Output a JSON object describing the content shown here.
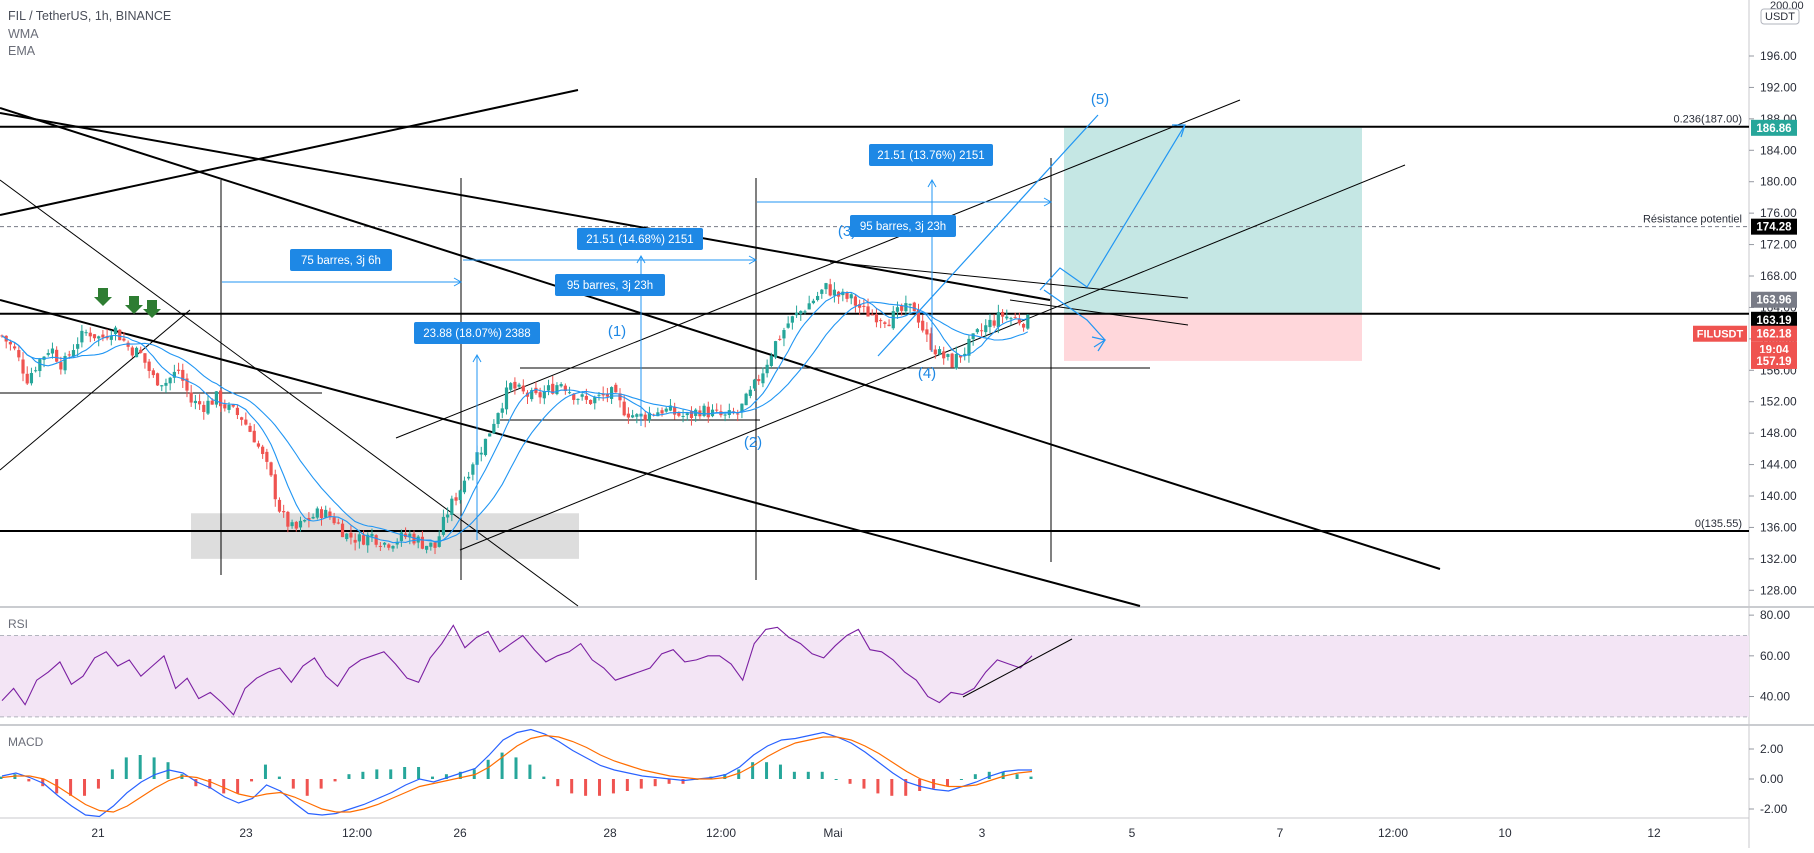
{
  "header": {
    "title": "FIL / TetherUS, 1h, BINANCE",
    "indicator_1": "WMA",
    "indicator_2": "EMA"
  },
  "panes": {
    "rsi_label": "RSI",
    "macd_label": "MACD"
  },
  "colors": {
    "candle_up": "#26a69a",
    "candle_down": "#ef5350",
    "ma": "#2196f3",
    "rsi_line": "#7b1fa2",
    "macd_line": "#2962ff",
    "signal_line": "#ff6d00",
    "target_zone": "#b2dfdb",
    "stop_zone": "#ffcdd2",
    "annotation_fill": "#1e88e5",
    "wave_label": "#1e88e5",
    "arrow": "#2e7d32"
  },
  "chart_data": [
    {
      "type": "candlestick",
      "title": "FIL / TetherUS, 1h, BINANCE",
      "ylim": [
        126,
        203
      ],
      "y_ticks": [
        128,
        132,
        136,
        140,
        144,
        148,
        152,
        156,
        160,
        164,
        168,
        172,
        176,
        180,
        184,
        188,
        192,
        196
      ],
      "y_tick_labels": [
        "128.00",
        "132.00",
        "136.00",
        "140.00",
        "144.00",
        "148.00",
        "152.00",
        "156.00",
        "160.00",
        "164.00",
        "168.00",
        "172.00",
        "176.00",
        "180.00",
        "184.00",
        "188.00",
        "192.00",
        "196.00"
      ],
      "x_ticks": [
        "21",
        "23",
        "12:00",
        "26",
        "28",
        "12:00",
        "Mai",
        "3",
        "5",
        "7",
        "12:00",
        "10",
        "12"
      ],
      "price_path": [
        [
          0,
          160.4
        ],
        [
          6,
          158.5
        ],
        [
          12,
          155
        ],
        [
          17,
          157
        ],
        [
          23,
          159
        ],
        [
          29,
          156.5
        ],
        [
          35,
          159.5
        ],
        [
          41,
          161
        ],
        [
          47,
          160
        ],
        [
          53,
          161.5
        ],
        [
          60,
          159
        ],
        [
          66,
          158
        ],
        [
          72,
          155
        ],
        [
          78,
          154.5
        ],
        [
          84,
          156
        ],
        [
          90,
          152
        ],
        [
          96,
          151.5
        ],
        [
          102,
          152.5
        ],
        [
          108,
          151
        ],
        [
          114,
          150
        ],
        [
          120,
          147.5
        ],
        [
          127,
          143
        ],
        [
          133,
          137.5
        ],
        [
          139,
          135.5
        ],
        [
          145,
          137
        ],
        [
          152,
          138
        ],
        [
          158,
          137
        ],
        [
          164,
          135
        ],
        [
          170,
          134.5
        ],
        [
          176,
          135
        ],
        [
          182,
          134
        ],
        [
          188,
          134.5
        ],
        [
          194,
          135
        ],
        [
          200,
          134
        ],
        [
          206,
          133.5
        ],
        [
          212,
          138
        ],
        [
          218,
          141
        ],
        [
          224,
          144.5
        ],
        [
          230,
          147
        ],
        [
          236,
          151
        ],
        [
          242,
          154
        ],
        [
          248,
          153
        ],
        [
          254,
          152.5
        ],
        [
          260,
          153.5
        ],
        [
          266,
          154.5
        ],
        [
          272,
          153
        ],
        [
          278,
          152
        ],
        [
          284,
          152.5
        ],
        [
          290,
          153
        ],
        [
          296,
          151
        ],
        [
          302,
          150
        ],
        [
          308,
          150.5
        ],
        [
          314,
          151
        ],
        [
          320,
          150.5
        ],
        [
          326,
          150
        ],
        [
          332,
          151
        ],
        [
          338,
          150.5
        ],
        [
          344,
          150
        ],
        [
          350,
          150.5
        ],
        [
          356,
          153
        ],
        [
          362,
          156
        ],
        [
          368,
          159.5
        ],
        [
          374,
          162
        ],
        [
          380,
          163.5
        ],
        [
          386,
          165
        ],
        [
          392,
          166.5
        ],
        [
          398,
          165.5
        ],
        [
          404,
          165
        ],
        [
          410,
          163.5
        ],
        [
          416,
          163
        ],
        [
          422,
          162.5
        ],
        [
          428,
          163.5
        ],
        [
          434,
          164
        ],
        [
          440,
          160
        ],
        [
          446,
          158
        ],
        [
          452,
          157
        ],
        [
          458,
          158.5
        ],
        [
          464,
          160.5
        ],
        [
          470,
          162
        ],
        [
          476,
          163
        ],
        [
          482,
          162.5
        ],
        [
          488,
          162.2
        ]
      ],
      "series": [
        {
          "name": "WMA",
          "values": "smoothed close"
        },
        {
          "name": "EMA",
          "values": "smoothed close"
        }
      ],
      "price_labels": [
        {
          "text": "186.86",
          "value": 186.86,
          "color": "#26a69a"
        },
        {
          "text": "174.28",
          "value": 174.28,
          "color": "#000000"
        },
        {
          "text": "163.96",
          "value": 163.96,
          "color": "#787b86"
        },
        {
          "text": "163.19",
          "value": 163.19,
          "color": "#000000"
        },
        {
          "text": "FILUSDT",
          "value": 162.18,
          "color": "#ef5350"
        },
        {
          "text": "162.18",
          "value": 162.18,
          "color": "#ef5350"
        },
        {
          "text": "19:04",
          "value": 162.18,
          "color": "#ef5350"
        },
        {
          "text": "157.19",
          "value": 157.19,
          "color": "#ef5350"
        }
      ],
      "top_axis_labels": [
        "200.00",
        "USDT"
      ],
      "horizontal_levels": [
        {
          "value": 187.0,
          "label": "0.236(187.00)"
        },
        {
          "value": 174.28,
          "label": "Résistance potentiel",
          "style": "dashed"
        },
        {
          "value": 163.19
        },
        {
          "value": 135.55,
          "label": "0(135.55)"
        }
      ],
      "annotations": [
        {
          "text": "75 barres, 3j 6h"
        },
        {
          "text": "23.88 (18.07%) 2388"
        },
        {
          "text": "21.51 (14.68%) 2151"
        },
        {
          "text": "95 barres, 3j 23h"
        },
        {
          "text": "21.51 (13.76%) 2151"
        },
        {
          "text": "95 barres, 3j 23h"
        }
      ],
      "wave_labels": [
        "(1)",
        "(2)",
        "(3)",
        "(4)",
        "(5)"
      ],
      "position_tool": {
        "entry": 163.19,
        "target": 186.86,
        "stop": 157.19
      }
    },
    {
      "type": "line",
      "title": "RSI",
      "ylim": [
        26,
        84
      ],
      "y_ticks": [
        40,
        60,
        80
      ],
      "y_tick_labels": [
        "40.00",
        "60.00",
        "80.00"
      ],
      "band": [
        30,
        70
      ],
      "values": [
        38,
        44,
        36,
        48,
        52,
        57,
        46,
        50,
        59,
        62,
        55,
        58,
        50,
        55,
        60,
        44,
        49,
        39,
        42,
        37,
        31,
        44,
        49,
        52,
        54,
        47,
        55,
        59,
        50,
        45,
        54,
        58,
        60,
        62,
        56,
        49,
        47,
        59,
        66,
        75,
        64,
        69,
        72,
        62,
        66,
        70,
        63,
        57,
        60,
        62,
        66,
        58,
        54,
        48,
        50,
        52,
        54,
        61,
        63,
        57,
        58,
        60,
        60,
        56,
        48,
        66,
        73,
        74,
        69,
        66,
        61,
        59,
        65,
        70,
        73,
        63,
        62,
        58,
        52,
        48,
        40,
        37,
        42,
        41,
        44,
        52,
        58,
        56,
        54,
        60
      ]
    },
    {
      "type": "line",
      "title": "MACD",
      "ylim": [
        -2.6,
        3.6
      ],
      "y_ticks": [
        -2,
        0,
        2
      ],
      "y_tick_labels": [
        "-2.00",
        "0.00",
        "2.00"
      ],
      "series": [
        {
          "values": [
            0.2,
            0.4,
            0.1,
            -0.3,
            -1.1,
            -1.8,
            -2.4,
            -2.5,
            -1.8,
            -0.9,
            -0.2,
            0.3,
            0.6,
            0.4,
            -0.2,
            -0.6,
            -1.2,
            -1.6,
            -1.3,
            -0.4,
            -0.8,
            -1.6,
            -2.3,
            -2.4,
            -2.3,
            -2.0,
            -1.7,
            -1.3,
            -0.9,
            -0.4,
            0.0,
            -0.2,
            0.1,
            0.4,
            0.7,
            1.6,
            2.6,
            3.1,
            3.3,
            3.0,
            2.5,
            1.9,
            1.4,
            0.9,
            0.6,
            0.4,
            0.2,
            0.1,
            0.0,
            -0.1,
            0.0,
            0.1,
            0.3,
            0.8,
            1.6,
            2.2,
            2.6,
            2.7,
            2.9,
            3.1,
            2.8,
            2.4,
            1.8,
            1.1,
            0.4,
            -0.2,
            -0.5,
            -0.7,
            -0.8,
            -0.5,
            -0.2,
            0.2,
            0.5,
            0.6,
            0.6
          ]
        },
        {
          "values": [
            0.1,
            0.2,
            0.2,
            0.0,
            -0.5,
            -1.1,
            -1.7,
            -2.1,
            -2.2,
            -1.8,
            -1.2,
            -0.6,
            -0.1,
            0.2,
            0.1,
            -0.2,
            -0.6,
            -1.0,
            -1.2,
            -1.0,
            -0.9,
            -1.2,
            -1.6,
            -2.0,
            -2.2,
            -2.2,
            -2.0,
            -1.7,
            -1.3,
            -0.9,
            -0.5,
            -0.3,
            -0.1,
            0.1,
            0.3,
            0.8,
            1.5,
            2.2,
            2.7,
            2.9,
            2.8,
            2.5,
            2.1,
            1.6,
            1.2,
            0.9,
            0.6,
            0.4,
            0.2,
            0.1,
            0.0,
            0.0,
            0.1,
            0.4,
            0.9,
            1.5,
            2.0,
            2.4,
            2.6,
            2.8,
            2.8,
            2.6,
            2.2,
            1.7,
            1.1,
            0.5,
            0.0,
            -0.3,
            -0.5,
            -0.5,
            -0.4,
            -0.1,
            0.2,
            0.4,
            0.5
          ]
        }
      ]
    }
  ]
}
